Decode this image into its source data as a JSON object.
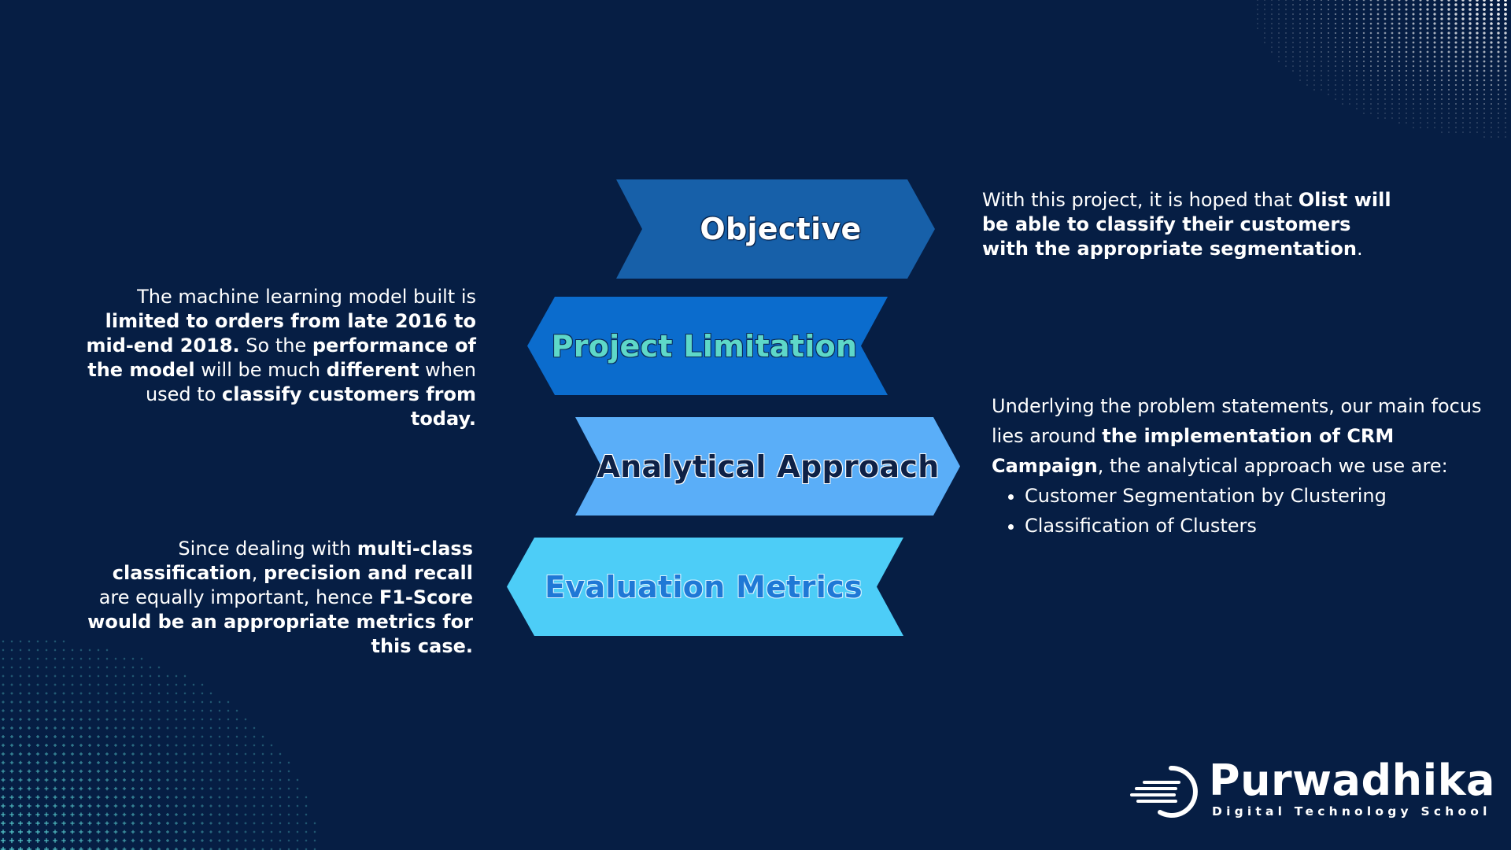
{
  "colors": {
    "background": "#061e44",
    "objective_arrow": "#1760a9",
    "limitation_arrow": "#0b6ccd",
    "approach_arrow": "#5aaef8",
    "metrics_arrow": "#4dcdf7",
    "dots_top_right": "#ffffff",
    "dots_bottom_left": "#5ed8d8"
  },
  "arrows": {
    "objective": "Objective",
    "limitation": "Project Limitation",
    "approach": "Analytical Approach",
    "metrics": "Evaluation Metrics"
  },
  "objective_text": {
    "p1": "With this project, it is hoped that ",
    "b1": "Olist will be able to classify their customers with the appropriate segmentation",
    "p2": "."
  },
  "limitation_text": {
    "p1": "The machine learning model built is ",
    "b1": "limited to orders from late 2016 to mid-end 2018.",
    "p2": " So the ",
    "b2": "performance of the model",
    "p3": " will be much ",
    "b3": "different",
    "p4": " when used to ",
    "b4": "classify customers from today."
  },
  "approach_text": {
    "p1": "Underlying the problem statements, our main focus lies around ",
    "b1": "the implementation of CRM Campaign",
    "p2": ", the analytical approach we use are:",
    "bullets": [
      "Customer Segmentation by Clustering",
      "Classification of Clusters"
    ]
  },
  "metrics_text": {
    "p1": "Since dealing with ",
    "b1": "multi-class classification",
    "p2": ", ",
    "b2": "precision and recall",
    "p3": " are equally important, hence ",
    "b3": "F1-Score would be an appropriate metrics for this case."
  },
  "logo": {
    "name": "Purwadhika",
    "tagline": "Digital Technology School",
    "icon": "swoosh-circle-logo-icon"
  }
}
